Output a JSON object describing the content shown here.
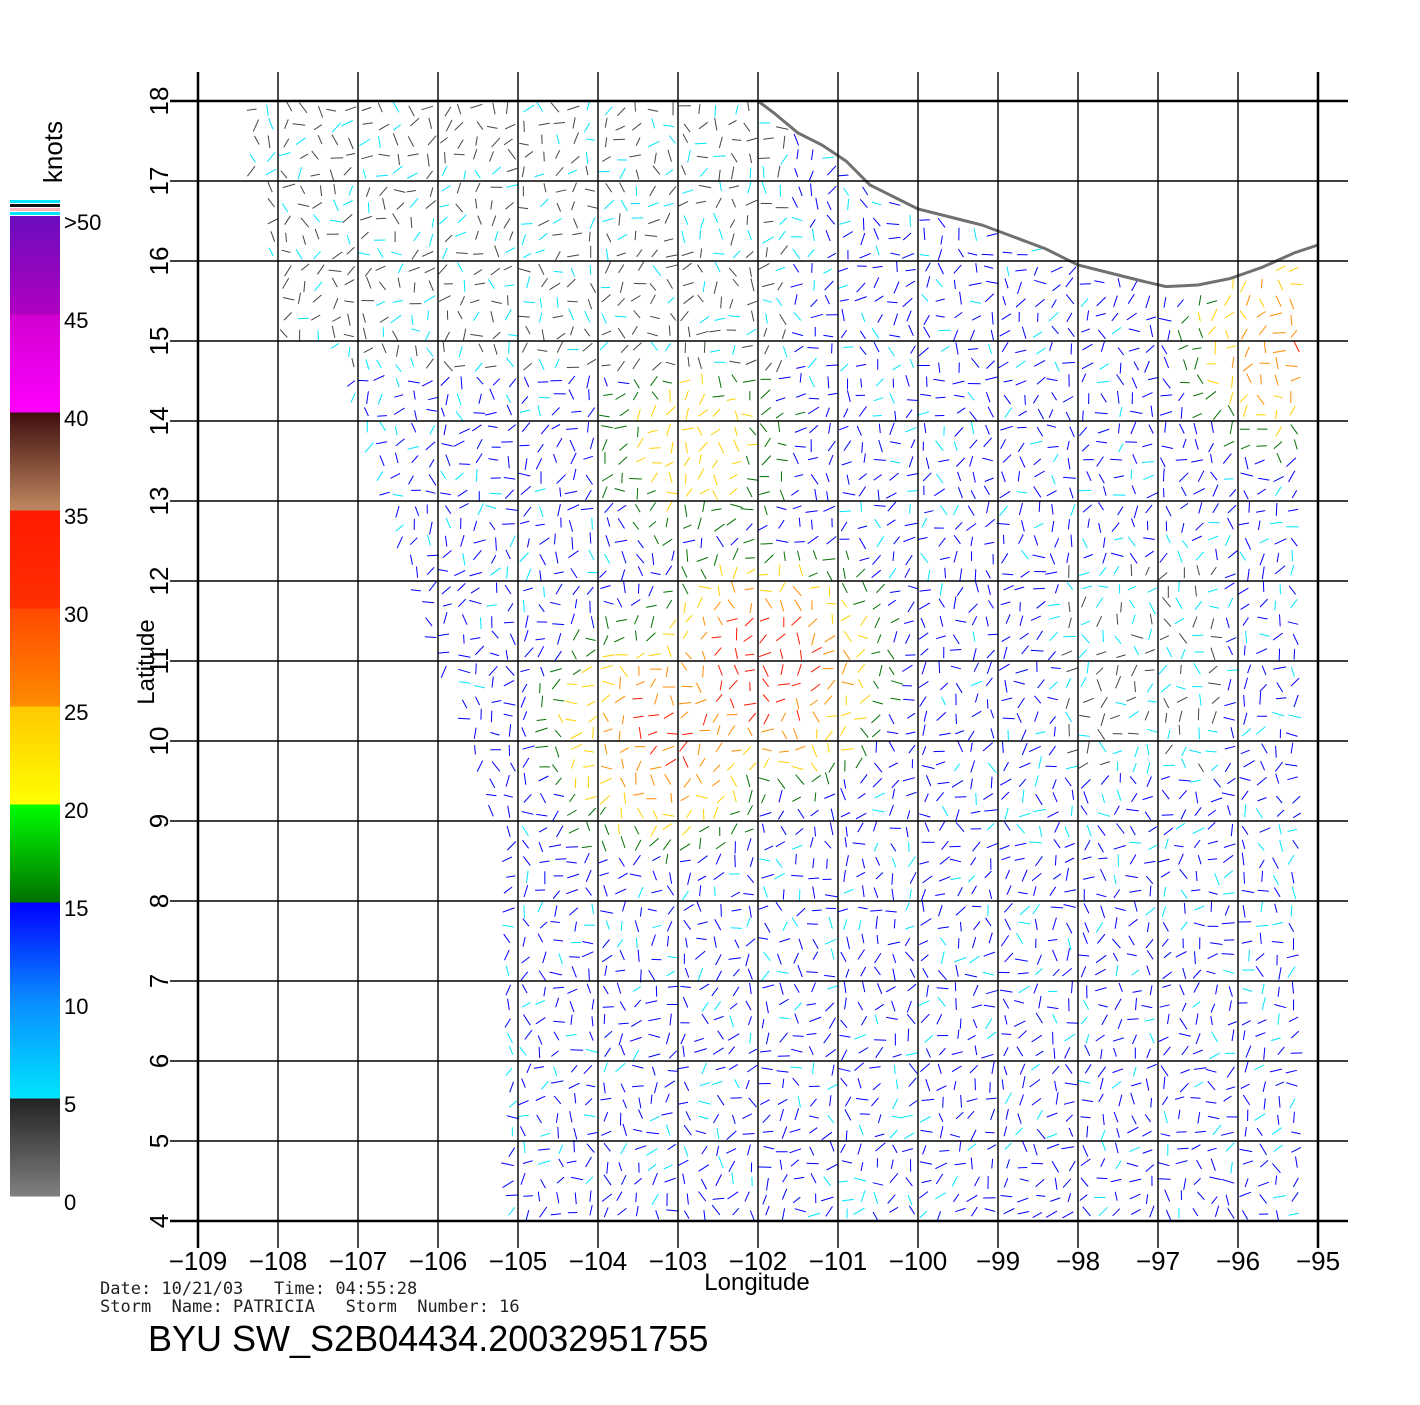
{
  "title": "BYU SW_S2B04434.20032951755",
  "date_line": "Date: 10/21/03   Time: 04:55:28",
  "storm_line": "Storm  Name: PATRICIA   Storm  Number: 16",
  "colorbar": {
    "unit_label": "knots",
    "tick_labels": [
      ">50",
      "45",
      "40",
      "35",
      "30",
      "25",
      "20",
      "15",
      "10",
      "5",
      "0"
    ],
    "colors": {
      "gray": "#808080",
      "dark": "#222222",
      "cyan": "#00e5ff",
      "blue_light": "#0a8cff",
      "blue": "#0000ff",
      "green_dark": "#007000",
      "green": "#00ff00",
      "yellow": "#ffff00",
      "orange": "#ff8c00",
      "red": "#ff1a00",
      "brown_dark": "#3d0d0d",
      "brown_light": "#c08860",
      "magenta": "#ff00ff",
      "purple": "#6a0dbd"
    }
  },
  "map": {
    "xlabel": "Longitude",
    "ylabel": "Latitude",
    "lon_ticks": [
      -109,
      -108,
      -107,
      -106,
      -105,
      -104,
      -103,
      -102,
      -101,
      -100,
      -99,
      -98,
      -97,
      -96,
      -95
    ],
    "lat_ticks": [
      4,
      5,
      6,
      7,
      8,
      9,
      10,
      11,
      12,
      13,
      14,
      15,
      16,
      17,
      18
    ],
    "lon_range": [
      -109,
      -95
    ],
    "lat_range": [
      4,
      18
    ],
    "coastline": [
      [
        -102.0,
        18.0
      ],
      [
        -101.8,
        17.85
      ],
      [
        -101.5,
        17.6
      ],
      [
        -101.2,
        17.45
      ],
      [
        -100.9,
        17.25
      ],
      [
        -100.6,
        16.95
      ],
      [
        -100.3,
        16.8
      ],
      [
        -100.0,
        16.65
      ],
      [
        -99.6,
        16.55
      ],
      [
        -99.2,
        16.45
      ],
      [
        -98.8,
        16.3
      ],
      [
        -98.4,
        16.15
      ],
      [
        -98.0,
        15.95
      ],
      [
        -97.6,
        15.85
      ],
      [
        -97.2,
        15.75
      ],
      [
        -96.9,
        15.68
      ],
      [
        -96.5,
        15.7
      ],
      [
        -96.1,
        15.78
      ],
      [
        -95.7,
        15.92
      ],
      [
        -95.3,
        16.1
      ],
      [
        -95.0,
        16.2
      ]
    ],
    "wind_centers": [
      {
        "lon": -101.9,
        "lat": 10.9,
        "strength": 33
      },
      {
        "lon": -103.2,
        "lat": 10.1,
        "strength": 30
      },
      {
        "lon": -95.3,
        "lat": 15.0,
        "strength": 28
      },
      {
        "lon": -102.8,
        "lat": 13.7,
        "strength": 22
      }
    ]
  }
}
